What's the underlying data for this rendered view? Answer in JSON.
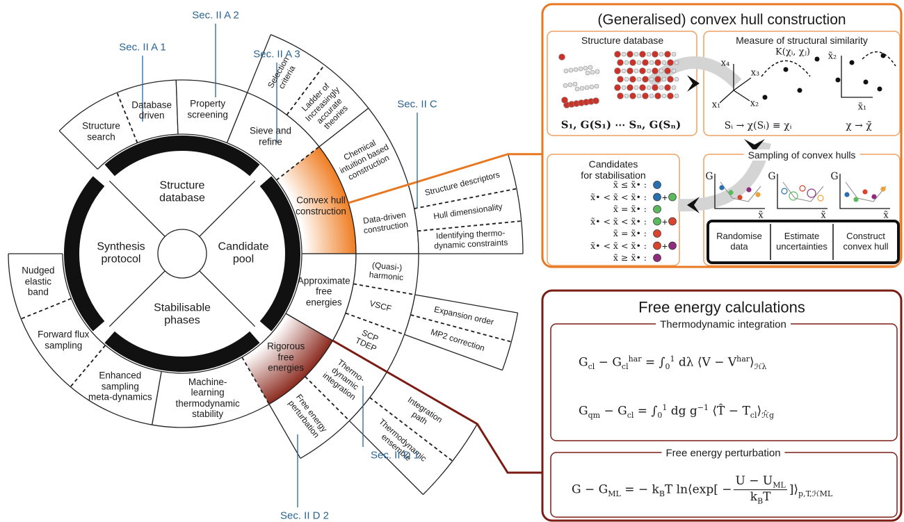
{
  "wheel": {
    "core": [
      "Structure\ndatabase",
      "Candidate\npool",
      "Stabilisable\nphases",
      "Synthesis\nprotocol"
    ],
    "segments": [
      "Structure\nsearch",
      "Database\ndriven",
      "Property\nscreening",
      "Sieve and\nrefine",
      "Convex hull\nconstruction",
      "Approximate\nfree\nenergies",
      "Rigorous\nfree\nenergies",
      "Machine-\nlearning\nthermodynamic\nstability",
      "Enhanced\nsampling\nmeta-dynamics",
      "Forward flux\nsampling",
      "Nudged\nelastic\nband",
      "Selection\ncriteria",
      "Ladder of\nIncreasingly\naccurate\ntheories",
      "Chemical\nintuition based\nconstruction",
      "Data-driven\nconstruction",
      "(Quasi-)\nharmonic",
      "VSCF",
      "SCP\nTDEP",
      "Thermo-\ndynamic\nintegration",
      "Free energy\nperturbation",
      "Structure descriptors",
      "Hull dimensionality",
      "Identifying thermo-\ndynamic constraints",
      "Expansion order",
      "MP2 correction",
      "Integration\npath",
      "Thermodynamic\nensemble"
    ]
  },
  "sections": [
    "Sec. II A 1",
    "Sec. II A 2",
    "Sec. II A 3",
    "Sec. II C",
    "Sec. II D 1",
    "Sec. II D 2"
  ],
  "convex_hull": {
    "title": "(Generalised) convex hull construction",
    "structure_database": {
      "title": "Structure database",
      "caption": "S₁, G(S₁) ⋯ Sₙ, G(Sₙ)"
    },
    "similarity": {
      "title": "Measure of structural similarity",
      "kernel": "K(χᵢ, χⱼ)",
      "axes": [
        "x₄",
        "x₃",
        "x₁",
        "x₂"
      ],
      "reduced_axes": [
        "x̃₂",
        "x̃₁"
      ],
      "captions": [
        "Sᵢ → χ(Sᵢ) ≡ χᵢ",
        "χ → χ̃"
      ]
    },
    "candidates": {
      "title": "Candidates\nfor stabilisation",
      "rows": [
        "x̃ ≤ x̃• :",
        "x̃• < x̃ < x̃• :",
        "x̃ = x̃• :",
        "x̃• < x̃ < x̃• :",
        "x̃ = x̃• :",
        "x̃• < x̃ < x̃• :",
        "x̃ ≥ x̃• :"
      ],
      "plus": "+",
      "dot_colors": [
        [
          "#2a6fb0"
        ],
        [
          "#2a6fb0",
          "#5cb85c"
        ],
        [
          "#5cb85c"
        ],
        [
          "#5cb85c",
          "#d9442e"
        ],
        [
          "#d9442e"
        ],
        [
          "#d9442e",
          "#8e2d7e"
        ],
        [
          "#8e2d7e"
        ]
      ]
    },
    "sampling": {
      "title": "Sampling of convex hulls",
      "y_labels": [
        "G",
        "G",
        "G"
      ],
      "x_labels": [
        "x̃",
        "x̃",
        "x̃"
      ],
      "steps": [
        "Randomise\ndata",
        "Estimate\nuncertainties",
        "Construct\nconvex hull"
      ]
    }
  },
  "free_energy": {
    "title": "Free energy calculations",
    "thermodynamic_integration": {
      "title": "Thermodynamic integration",
      "formula_1": [
        "G",
        "cl",
        " − G",
        "cl",
        "har",
        " = ∫",
        "0",
        "1",
        " dλ ⟨V − V",
        "har",
        "⟩",
        "ℋλ"
      ],
      "formula_2": [
        "G",
        "qm",
        " − G",
        "cl",
        " = ∫",
        "0",
        "1",
        " dg g",
        "−1",
        " ⟨T̂ − T",
        "cl",
        "⟩",
        "ℋ̂g"
      ]
    },
    "perturbation": {
      "title": "Free energy perturbation",
      "formula": [
        "G − G",
        "ML",
        " = − k",
        "B",
        "T ln⟨exp[ −",
        "U − U",
        "ML",
        "k",
        "B",
        "T",
        "]⟩",
        "p,T,ℋML"
      ]
    }
  }
}
